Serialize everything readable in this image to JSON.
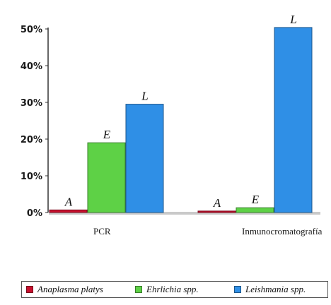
{
  "chart_data": {
    "type": "bar",
    "categories": [
      "PCR",
      "Inmunocromatografía"
    ],
    "series": [
      {
        "name": "Anaplasma platys",
        "values": [
          0.7,
          0.4
        ],
        "label": "A",
        "color": "#c8102e"
      },
      {
        "name": "Ehrlichia spp.",
        "values": [
          19,
          1.3
        ],
        "label": "E",
        "color": "#5ed146"
      },
      {
        "name": "Leishmania spp.",
        "values": [
          29.5,
          50.4
        ],
        "label": "L",
        "color": "#2f8fe6"
      }
    ],
    "ylim": [
      0,
      50
    ],
    "yticks": [
      "0%",
      "10%",
      "20%",
      "30%",
      "40%",
      "50%"
    ],
    "ytick_values": [
      0,
      10,
      20,
      30,
      40,
      50
    ],
    "legend_position": "bottom",
    "grid": false
  }
}
